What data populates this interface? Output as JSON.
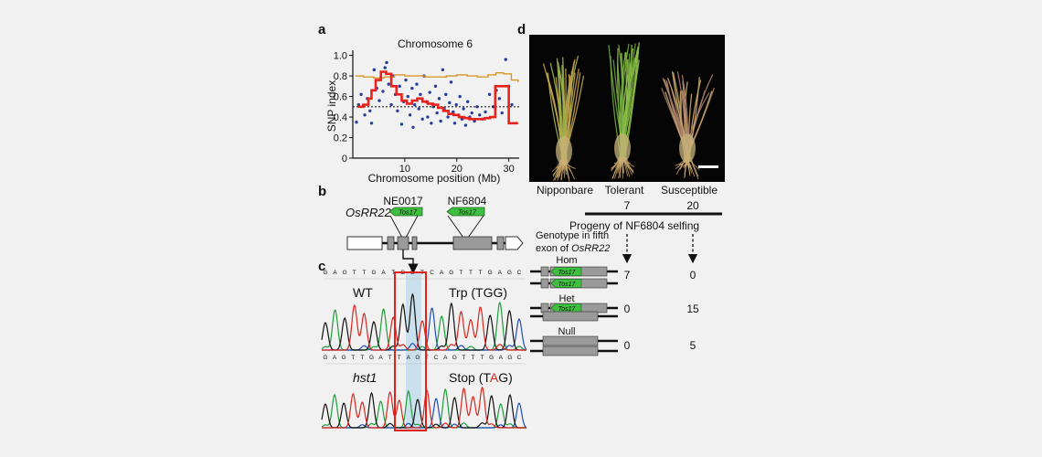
{
  "panels": {
    "a": "a",
    "b": "b",
    "c": "c",
    "d": "d"
  },
  "panel_a": {
    "chart_data": {
      "type": "scatter",
      "title": "Chromosome 6",
      "xlabel": "Chromosome position (Mb)",
      "ylabel": "SNP index",
      "xlim": [
        0,
        32
      ],
      "ylim": [
        0,
        1.05
      ],
      "x_ticks": [
        "10",
        "20",
        "30"
      ],
      "y_ticks": [
        "0",
        "0.2",
        "0.4",
        "0.6",
        "0.8",
        "1.0"
      ],
      "threshold_line": 0.5,
      "grid": false,
      "colors": {
        "points": "#2a3f9a",
        "red_line": "#e8231c",
        "orange_line": "#d9962a",
        "threshold": "#222222"
      },
      "series": [
        {
          "type": "scatter",
          "points": [
            [
              0.7,
              0.35
            ],
            [
              1.1,
              0.52
            ],
            [
              1.6,
              0.62
            ],
            [
              2.3,
              0.42
            ],
            [
              2.8,
              0.58
            ],
            [
              3.3,
              0.46
            ],
            [
              3.6,
              0.34
            ],
            [
              4.1,
              0.86
            ],
            [
              4.6,
              0.68
            ],
            [
              5.1,
              0.56
            ],
            [
              5.4,
              0.78
            ],
            [
              5.8,
              0.65
            ],
            [
              6.2,
              0.88
            ],
            [
              6.5,
              0.93
            ],
            [
              6.9,
              0.72
            ],
            [
              7.4,
              0.52
            ],
            [
              7.8,
              0.8
            ],
            [
              8.2,
              0.62
            ],
            [
              8.6,
              0.46
            ],
            [
              9.0,
              0.7
            ],
            [
              9.4,
              0.33
            ],
            [
              9.8,
              0.55
            ],
            [
              10.2,
              0.76
            ],
            [
              10.6,
              0.6
            ],
            [
              11.0,
              0.42
            ],
            [
              11.4,
              0.68
            ],
            [
              11.6,
              0.3
            ],
            [
              11.9,
              0.52
            ],
            [
              12.3,
              0.72
            ],
            [
              12.7,
              0.48
            ],
            [
              13.0,
              0.62
            ],
            [
              13.4,
              0.38
            ],
            [
              13.7,
              0.8
            ],
            [
              14.1,
              0.55
            ],
            [
              14.4,
              0.4
            ],
            [
              14.8,
              0.64
            ],
            [
              15.1,
              0.34
            ],
            [
              15.5,
              0.5
            ],
            [
              15.9,
              0.7
            ],
            [
              16.2,
              0.44
            ],
            [
              16.6,
              0.58
            ],
            [
              16.9,
              0.36
            ],
            [
              17.3,
              0.86
            ],
            [
              17.6,
              0.48
            ],
            [
              17.9,
              0.62
            ],
            [
              18.3,
              0.4
            ],
            [
              18.6,
              0.54
            ],
            [
              18.9,
              0.74
            ],
            [
              19.3,
              0.45
            ],
            [
              19.6,
              0.34
            ],
            [
              19.9,
              0.52
            ],
            [
              20.3,
              0.42
            ],
            [
              20.6,
              0.6
            ],
            [
              21.0,
              0.38
            ],
            [
              21.3,
              0.48
            ],
            [
              21.7,
              0.32
            ],
            [
              22.1,
              0.55
            ],
            [
              22.5,
              0.4
            ],
            [
              22.9,
              0.44
            ],
            [
              23.4,
              0.36
            ],
            [
              23.9,
              0.5
            ],
            [
              24.4,
              0.42
            ],
            [
              24.9,
              0.38
            ],
            [
              25.5,
              0.45
            ],
            [
              26.3,
              0.62
            ],
            [
              27.0,
              0.5
            ],
            [
              27.6,
              0.66
            ],
            [
              28.2,
              0.58
            ],
            [
              28.7,
              0.44
            ],
            [
              29.4,
              0.96
            ],
            [
              30.0,
              0.7
            ],
            [
              30.6,
              0.52
            ]
          ]
        },
        {
          "type": "line",
          "color": "red",
          "points": [
            [
              1,
              0.5
            ],
            [
              2,
              0.52
            ],
            [
              3,
              0.58
            ],
            [
              3.6,
              0.66
            ],
            [
              4.4,
              0.76
            ],
            [
              5.4,
              0.84
            ],
            [
              6.4,
              0.82
            ],
            [
              7.4,
              0.7
            ],
            [
              8.4,
              0.62
            ],
            [
              9.4,
              0.56
            ],
            [
              10.4,
              0.53
            ],
            [
              11.4,
              0.56
            ],
            [
              12.4,
              0.58
            ],
            [
              13.4,
              0.55
            ],
            [
              14.4,
              0.53
            ],
            [
              15.4,
              0.52
            ],
            [
              16.4,
              0.49
            ],
            [
              17.4,
              0.46
            ],
            [
              18.4,
              0.43
            ],
            [
              19.4,
              0.42
            ],
            [
              20.4,
              0.4
            ],
            [
              21.4,
              0.39
            ],
            [
              22.4,
              0.38
            ],
            [
              23.4,
              0.38
            ],
            [
              24.4,
              0.38
            ],
            [
              25.4,
              0.39
            ],
            [
              26.4,
              0.4
            ],
            [
              27.4,
              0.7
            ],
            [
              29.6,
              0.7
            ],
            [
              30.0,
              0.34
            ],
            [
              31.8,
              0.34
            ]
          ]
        },
        {
          "type": "line",
          "color": "orange",
          "points": [
            [
              0.5,
              0.8
            ],
            [
              2,
              0.79
            ],
            [
              4,
              0.78
            ],
            [
              6,
              0.79
            ],
            [
              8,
              0.81
            ],
            [
              10,
              0.8
            ],
            [
              12,
              0.8
            ],
            [
              14,
              0.79
            ],
            [
              16,
              0.79
            ],
            [
              18,
              0.8
            ],
            [
              20,
              0.81
            ],
            [
              22,
              0.8
            ],
            [
              24,
              0.79
            ],
            [
              26,
              0.81
            ],
            [
              27.5,
              0.83
            ],
            [
              29,
              0.82
            ],
            [
              30.5,
              0.76
            ],
            [
              31.8,
              0.74
            ]
          ]
        }
      ]
    }
  },
  "panel_b": {
    "gene": "OsRR22",
    "insertion_1": "NE0017",
    "insertion_2": "NF6804",
    "tag": "Tos17"
  },
  "panel_c": {
    "seq_top": [
      "G",
      "A",
      "G",
      "T",
      "T",
      "G",
      "A",
      "T",
      "G",
      "G",
      "T",
      "C",
      "A",
      "G",
      "T",
      "T",
      "T",
      "G",
      "A",
      "G",
      "C"
    ],
    "seq_bottom": [
      "G",
      "A",
      "G",
      "T",
      "T",
      "G",
      "A",
      "T",
      "T",
      "A",
      "G",
      "T",
      "C",
      "A",
      "G",
      "T",
      "T",
      "T",
      "G",
      "A",
      "G",
      "C"
    ],
    "wt_label": "WT",
    "mut_label": "hst1",
    "wt_codon": "Trp (TGG)",
    "stop_prefix": "Stop (T",
    "stop_red": "A",
    "stop_suffix": "G)"
  },
  "genotype": {
    "header_line1": "Genotype in fifth",
    "header_line2_prefix": "exon of ",
    "header_line2_gene": "OsRR22",
    "hom": "Hom",
    "het": "Het",
    "null": "Null",
    "tag": "Tos17",
    "progeny_label": "Progeny of NF6804 selfing",
    "tolerant_total": "7",
    "susceptible_total": "20",
    "hom_tol": "7",
    "hom_sus": "0",
    "het_tol": "0",
    "het_sus": "15",
    "null_tol": "0",
    "null_sus": "5"
  },
  "panel_d": {
    "labels": [
      "Nipponbare",
      "Tolerant",
      "Susceptible"
    ]
  }
}
